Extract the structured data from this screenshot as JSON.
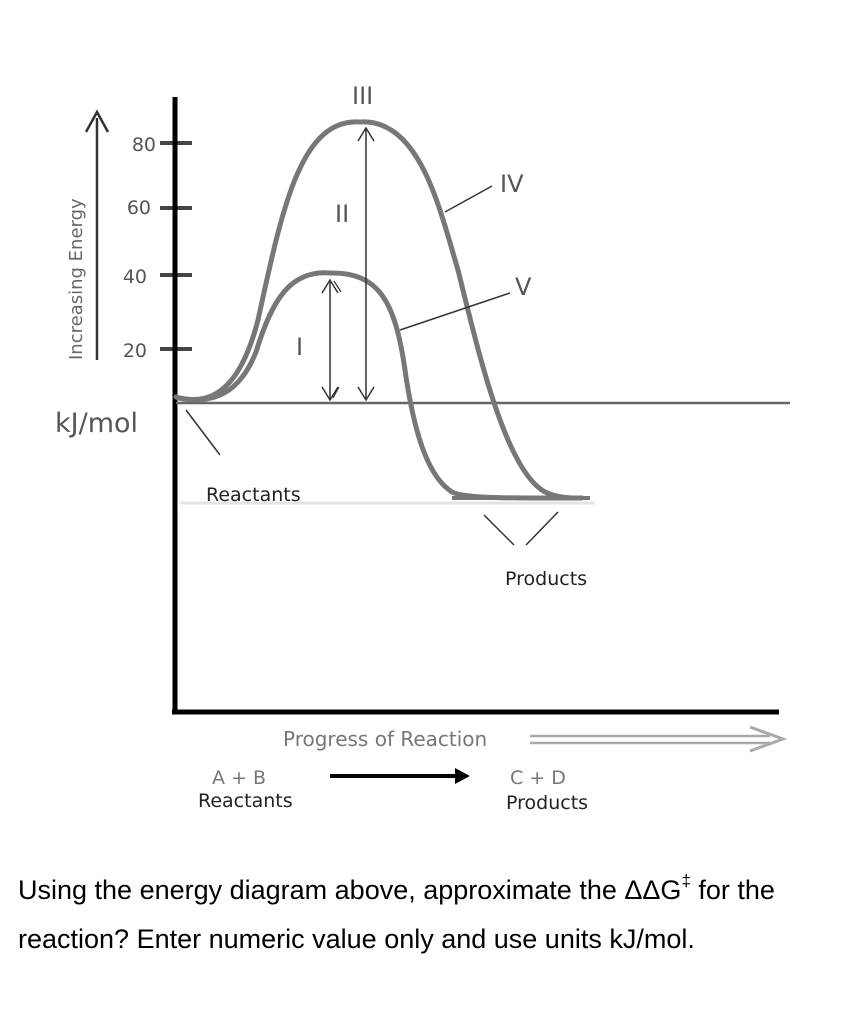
{
  "diagram": {
    "y_axis_label": "Increasing Energy",
    "unit_label": "kJ/mol",
    "y_ticks": [
      "80",
      "60",
      "40",
      "20"
    ],
    "x_axis_label": "Progress of Reaction",
    "reactants_label": "Reactants",
    "products_label": "Products",
    "markers": {
      "I": "I",
      "II": "II",
      "III": "III",
      "IV": "IV",
      "V": "V"
    },
    "equation": {
      "left": "A + B",
      "left_caption": "Reactants",
      "right": "C + D",
      "right_caption": "Products"
    },
    "colors": {
      "curve": "#777777",
      "axis": "#000000",
      "label": "#555555"
    }
  },
  "question": {
    "text_before": "Using the energy diagram above, approximate the ΔΔG",
    "sup": "‡",
    "text_after": " for the reaction? Enter numeric value only and use units kJ/mol."
  }
}
